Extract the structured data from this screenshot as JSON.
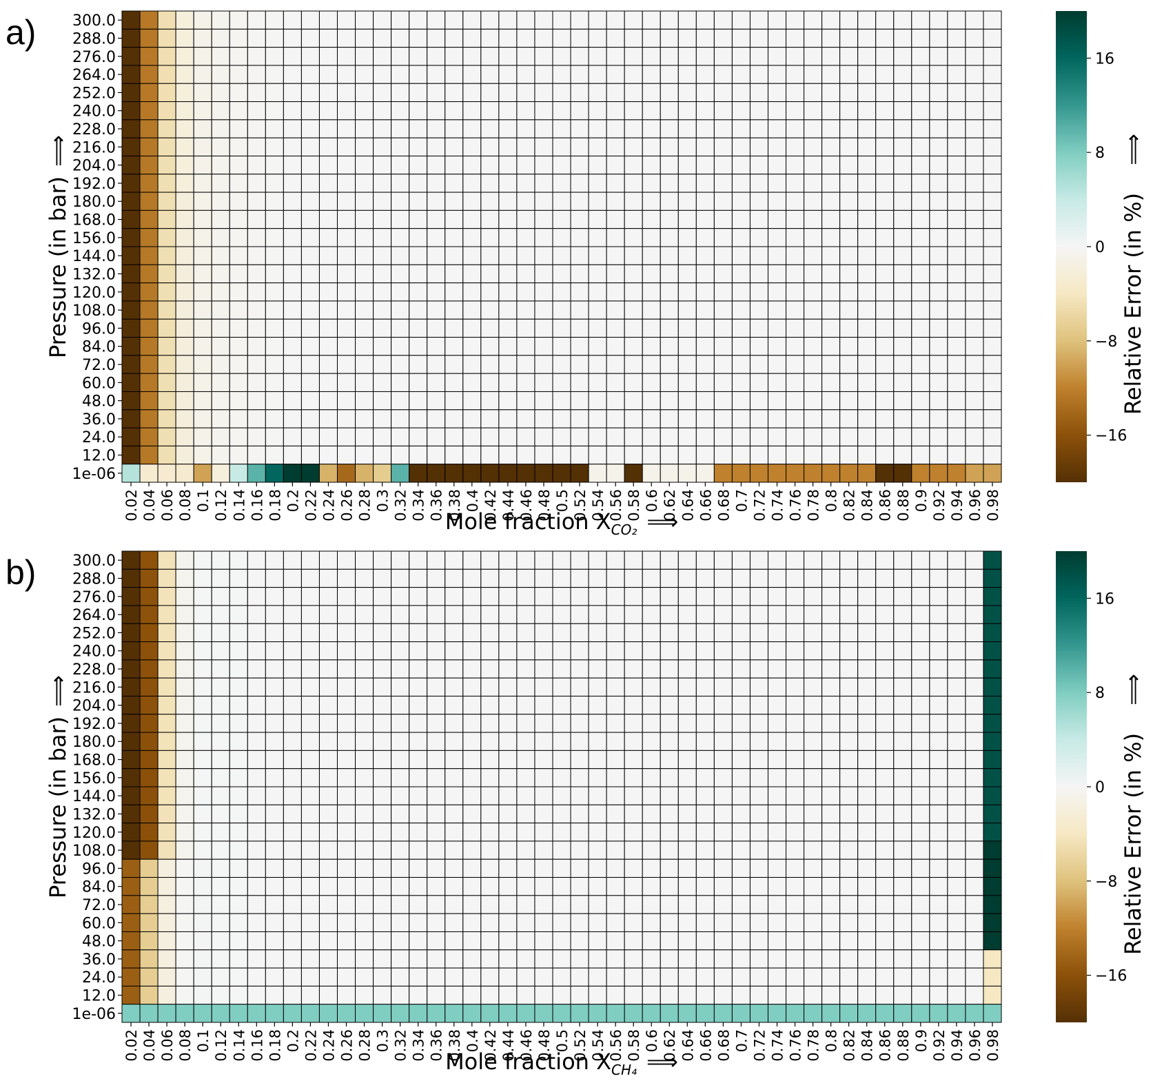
{
  "chart_data": [
    {
      "type": "heatmap",
      "panel_label": "a)",
      "xlabel_main": "Mole fraction X",
      "xlabel_sub": "CO₂",
      "xlabel_arrow": "⟹",
      "ylabel": "Pressure (in bar)",
      "ylabel_arrow": "⟹",
      "colorbar_label": "Relative Error (in %)",
      "colorbar_arrow": "⟹",
      "colorbar_ticks": [
        16,
        8,
        0,
        -8,
        -16
      ],
      "colorbar_range": [
        -20,
        20
      ],
      "colormap": [
        "#543005",
        "#8c510a",
        "#bf812d",
        "#dfc27d",
        "#f6e8c3",
        "#f5f5f5",
        "#c7eae5",
        "#80cdc1",
        "#35978f",
        "#01665e",
        "#003c30"
      ],
      "x_ticks": [
        "0.02",
        "0.04",
        "0.06",
        "0.08",
        "0.1",
        "0.12",
        "0.14",
        "0.16",
        "0.18",
        "0.2",
        "0.22",
        "0.24",
        "0.26",
        "0.28",
        "0.3",
        "0.32",
        "0.34",
        "0.36",
        "0.38",
        "0.4",
        "0.42",
        "0.44",
        "0.46",
        "0.48",
        "0.5",
        "0.52",
        "0.54",
        "0.56",
        "0.58",
        "0.6",
        "0.62",
        "0.64",
        "0.66",
        "0.68",
        "0.7",
        "0.72",
        "0.74",
        "0.76",
        "0.78",
        "0.8",
        "0.82",
        "0.84",
        "0.86",
        "0.88",
        "0.9",
        "0.92",
        "0.94",
        "0.96",
        "0.98"
      ],
      "y_ticks": [
        "300.0",
        "288.0",
        "276.0",
        "264.0",
        "252.0",
        "240.0",
        "228.0",
        "216.0",
        "204.0",
        "192.0",
        "180.0",
        "168.0",
        "156.0",
        "144.0",
        "132.0",
        "120.0",
        "108.0",
        "96.0",
        "84.0",
        "72.0",
        "60.0",
        "48.0",
        "36.0",
        "24.0",
        "12.0",
        "1e-06"
      ],
      "value_model": "A",
      "bottom_row_values": [
        5,
        -3,
        -3,
        -3,
        -10,
        -2,
        4,
        10,
        16,
        20,
        24,
        -9,
        -14,
        -9,
        -7,
        10,
        -20,
        -20,
        -20,
        -20,
        -20,
        -20,
        -20,
        -20,
        -20,
        -20,
        -1,
        -1,
        -20,
        -1,
        -1,
        -1,
        -1,
        -12,
        -12,
        -12,
        -12,
        -12,
        -12,
        -12,
        -12,
        -12,
        -20,
        -20,
        -12,
        -12,
        -12,
        -10,
        -10,
        -12
      ]
    },
    {
      "type": "heatmap",
      "panel_label": "b)",
      "xlabel_main": "Mole fraction X",
      "xlabel_sub": "CH₄",
      "xlabel_arrow": "⟹",
      "ylabel": "Pressure (in bar)",
      "ylabel_arrow": "⟹",
      "colorbar_label": "Relative Error (in %)",
      "colorbar_arrow": "⟹",
      "colorbar_ticks": [
        16,
        8,
        0,
        -8,
        -16
      ],
      "colorbar_range": [
        -20,
        20
      ],
      "colormap": [
        "#543005",
        "#8c510a",
        "#bf812d",
        "#dfc27d",
        "#f6e8c3",
        "#f5f5f5",
        "#c7eae5",
        "#80cdc1",
        "#35978f",
        "#01665e",
        "#003c30"
      ],
      "x_ticks": [
        "0.02",
        "0.04",
        "0.06",
        "0.08",
        "0.1",
        "0.12",
        "0.14",
        "0.16",
        "0.18",
        "0.2",
        "0.22",
        "0.24",
        "0.26",
        "0.28",
        "0.3",
        "0.32",
        "0.34",
        "0.36",
        "0.38",
        "0.4",
        "0.42",
        "0.44",
        "0.46",
        "0.48",
        "0.5",
        "0.52",
        "0.54",
        "0.56",
        "0.58",
        "0.6",
        "0.62",
        "0.64",
        "0.66",
        "0.68",
        "0.7",
        "0.72",
        "0.74",
        "0.76",
        "0.78",
        "0.8",
        "0.82",
        "0.84",
        "0.86",
        "0.88",
        "0.9",
        "0.92",
        "0.94",
        "0.96",
        "0.98"
      ],
      "y_ticks": [
        "300.0",
        "288.0",
        "276.0",
        "264.0",
        "252.0",
        "240.0",
        "228.0",
        "216.0",
        "204.0",
        "192.0",
        "180.0",
        "168.0",
        "156.0",
        "144.0",
        "132.0",
        "120.0",
        "108.0",
        "96.0",
        "84.0",
        "72.0",
        "60.0",
        "48.0",
        "36.0",
        "24.0",
        "12.0",
        "1e-06"
      ],
      "value_model": "B",
      "bottom_row_values": [
        8,
        8,
        8,
        8,
        8,
        8,
        8,
        8,
        8,
        8,
        8,
        8,
        8,
        8,
        8,
        8,
        8,
        8,
        8,
        8,
        8,
        8,
        8,
        8,
        8,
        8,
        8,
        8,
        8,
        8,
        8,
        8,
        8,
        8,
        8,
        8,
        8,
        8,
        8,
        8,
        8,
        8,
        8,
        8,
        8,
        8,
        8,
        8,
        8,
        8
      ]
    }
  ]
}
